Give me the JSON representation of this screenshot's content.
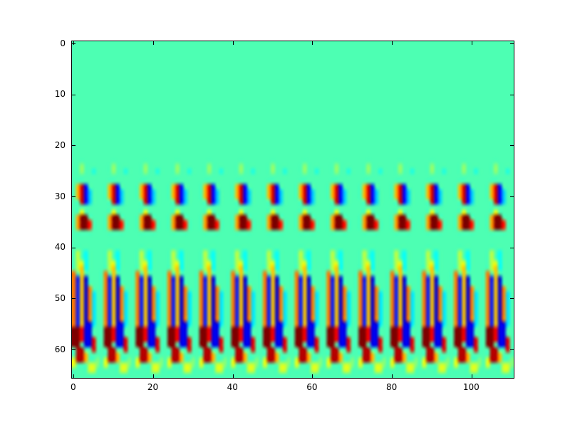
{
  "figure": {
    "background": "#ffffff",
    "plot_border_color": "#000000",
    "tick_label_color": "#000000"
  },
  "chart_data": {
    "type": "heatmap",
    "title": "",
    "xlabel": "",
    "ylabel": "",
    "colormap": "jet",
    "grid": false,
    "legend": false,
    "xticks": [
      0,
      20,
      40,
      60,
      80,
      100
    ],
    "yticks": [
      0,
      10,
      20,
      30,
      40,
      50,
      60
    ],
    "x_extent": [
      0,
      111
    ],
    "y_extent": [
      0,
      66
    ],
    "y_axis_inverted": true,
    "background_value": 0.45,
    "background_color_hex": "#4cffb2",
    "pattern": {
      "description": "Periodic filter-bank style response: uniform teal field for rows 0-24, a small red/blue wavelet cluster around rows 28-37, and a strong band of alternating orange/blue vertical streaks with dark-red and blue blobs around rows 44-63, repeating horizontally every 8 columns for 14 repeats.",
      "period": 8,
      "repeats": 14,
      "x_offset": 0,
      "blobs": [
        {
          "row": 24,
          "col": 2,
          "h": 2,
          "w": 1,
          "v": 0.52
        },
        {
          "row": 25,
          "col": 5,
          "h": 1,
          "w": 1,
          "v": 0.4
        },
        {
          "row": 28,
          "col": 1,
          "h": 3,
          "w": 1,
          "v": 0.7
        },
        {
          "row": 28,
          "col": 2,
          "h": 4,
          "w": 1,
          "v": 0.92
        },
        {
          "row": 28,
          "col": 3,
          "h": 4,
          "w": 1,
          "v": 0.12
        },
        {
          "row": 29,
          "col": 4,
          "h": 3,
          "w": 1,
          "v": 0.32
        },
        {
          "row": 33,
          "col": 2,
          "h": 1,
          "w": 1,
          "v": 0.62
        },
        {
          "row": 34,
          "col": 1,
          "h": 3,
          "w": 1,
          "v": 0.72
        },
        {
          "row": 34,
          "col": 2,
          "h": 3,
          "w": 2,
          "v": 1.0
        },
        {
          "row": 35,
          "col": 4,
          "h": 2,
          "w": 1,
          "v": 0.85
        },
        {
          "row": 41,
          "col": 1,
          "h": 4,
          "w": 1,
          "v": 0.56
        },
        {
          "row": 41,
          "col": 3,
          "h": 4,
          "w": 1,
          "v": 0.38
        },
        {
          "row": 43,
          "col": 2,
          "h": 3,
          "w": 1,
          "v": 0.6
        },
        {
          "row": 45,
          "col": 0,
          "h": 11,
          "w": 1,
          "v": 0.76
        },
        {
          "row": 46,
          "col": 1,
          "h": 10,
          "w": 1,
          "v": 0.15
        },
        {
          "row": 44,
          "col": 2,
          "h": 12,
          "w": 1,
          "v": 0.68
        },
        {
          "row": 46,
          "col": 3,
          "h": 12,
          "w": 1,
          "v": 0.08
        },
        {
          "row": 48,
          "col": 4,
          "h": 8,
          "w": 1,
          "v": 0.75
        },
        {
          "row": 49,
          "col": 5,
          "h": 7,
          "w": 1,
          "v": 0.35
        },
        {
          "row": 56,
          "col": 0,
          "h": 4,
          "w": 2,
          "v": 1.0
        },
        {
          "row": 56,
          "col": 2,
          "h": 3,
          "w": 1,
          "v": 0.88
        },
        {
          "row": 55,
          "col": 3,
          "h": 5,
          "w": 2,
          "v": 0.1
        },
        {
          "row": 58,
          "col": 5,
          "h": 3,
          "w": 1,
          "v": 0.9
        },
        {
          "row": 60,
          "col": 1,
          "h": 3,
          "w": 2,
          "v": 0.95
        },
        {
          "row": 61,
          "col": 3,
          "h": 2,
          "w": 1,
          "v": 0.7
        },
        {
          "row": 62,
          "col": 0,
          "h": 2,
          "w": 1,
          "v": 0.6
        },
        {
          "row": 63,
          "col": 4,
          "h": 2,
          "w": 2,
          "v": 0.58
        },
        {
          "row": 62,
          "col": 6,
          "h": 2,
          "w": 1,
          "v": 0.5
        }
      ]
    }
  }
}
